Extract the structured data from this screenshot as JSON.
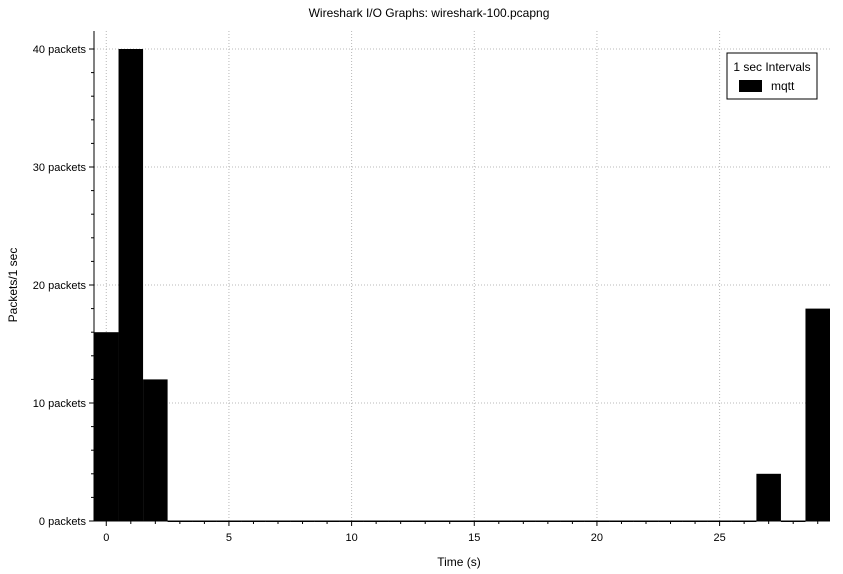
{
  "chart_data": {
    "type": "bar",
    "title": "Wireshark I/O Graphs: wireshark-100.pcapng",
    "xlabel": "Time (s)",
    "ylabel": "Packets/1 sec",
    "xlim": [
      -0.5,
      29.5
    ],
    "ylim": [
      0,
      40
    ],
    "xticks": [
      0,
      5,
      10,
      15,
      20,
      25
    ],
    "yticks": [
      0,
      10,
      20,
      30,
      40
    ],
    "ytick_labels": [
      "0 packets",
      "10 packets",
      "20 packets",
      "30 packets",
      "40 packets"
    ],
    "grid": true,
    "legend": {
      "title": "1 sec Intervals",
      "position": "top-right"
    },
    "series": [
      {
        "name": "mqtt",
        "color": "#000000",
        "x": [
          0,
          1,
          2,
          3,
          4,
          5,
          6,
          7,
          8,
          9,
          10,
          11,
          12,
          13,
          14,
          15,
          16,
          17,
          18,
          19,
          20,
          21,
          22,
          23,
          24,
          25,
          26,
          27,
          28,
          29
        ],
        "values": [
          16,
          40,
          12,
          0,
          0,
          0,
          0,
          0,
          0,
          0,
          0,
          0,
          0,
          0,
          0,
          0,
          0,
          0,
          0,
          0,
          0,
          0,
          0,
          0,
          0,
          0,
          0,
          4,
          0,
          18
        ]
      }
    ]
  }
}
